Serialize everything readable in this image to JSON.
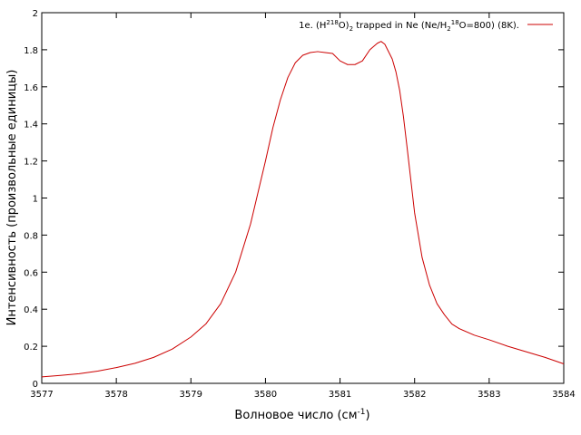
{
  "chart_data": {
    "type": "line",
    "xlabel": "Волновое число (см",
    "xlabel_sup": "-1",
    "xlabel_end": ")",
    "ylabel": "Интенсивность (произвольные единицы)",
    "xlim": [
      3577,
      3584
    ],
    "ylim": [
      0,
      2
    ],
    "x_ticks": [
      "3577",
      "3578",
      "3579",
      "3580",
      "3581",
      "3582",
      "3583",
      "3584"
    ],
    "y_ticks": [
      "0",
      "0.2",
      "0.4",
      "0.6",
      "0.8",
      "1",
      "1.2",
      "1.4",
      "1.6",
      "1.8",
      "2"
    ],
    "grid": false,
    "legend_position": "top-right",
    "series": [
      {
        "name_parts": {
          "a": "1e. (H",
          "s1": "2",
          "p1": "18",
          "b": "O)",
          "s2": "2",
          "c": " trapped in Ne (Ne/H",
          "s3": "2",
          "p2": "18",
          "d": "O=800) (8K)."
        },
        "color": "#cc0000",
        "points": [
          [
            3577.0,
            0.035
          ],
          [
            3577.25,
            0.043
          ],
          [
            3577.5,
            0.052
          ],
          [
            3577.75,
            0.066
          ],
          [
            3578.0,
            0.085
          ],
          [
            3578.25,
            0.108
          ],
          [
            3578.5,
            0.14
          ],
          [
            3578.75,
            0.185
          ],
          [
            3579.0,
            0.25
          ],
          [
            3579.2,
            0.32
          ],
          [
            3579.4,
            0.43
          ],
          [
            3579.6,
            0.6
          ],
          [
            3579.8,
            0.86
          ],
          [
            3579.9,
            1.03
          ],
          [
            3580.0,
            1.2
          ],
          [
            3580.1,
            1.38
          ],
          [
            3580.2,
            1.53
          ],
          [
            3580.3,
            1.65
          ],
          [
            3580.4,
            1.73
          ],
          [
            3580.5,
            1.77
          ],
          [
            3580.6,
            1.785
          ],
          [
            3580.7,
            1.79
          ],
          [
            3580.8,
            1.785
          ],
          [
            3580.9,
            1.78
          ],
          [
            3581.0,
            1.74
          ],
          [
            3581.1,
            1.72
          ],
          [
            3581.2,
            1.72
          ],
          [
            3581.3,
            1.74
          ],
          [
            3581.4,
            1.8
          ],
          [
            3581.5,
            1.835
          ],
          [
            3581.55,
            1.845
          ],
          [
            3581.6,
            1.83
          ],
          [
            3581.7,
            1.75
          ],
          [
            3581.75,
            1.68
          ],
          [
            3581.8,
            1.58
          ],
          [
            3581.85,
            1.44
          ],
          [
            3581.9,
            1.27
          ],
          [
            3582.0,
            0.92
          ],
          [
            3582.1,
            0.68
          ],
          [
            3582.2,
            0.53
          ],
          [
            3582.3,
            0.43
          ],
          [
            3582.4,
            0.37
          ],
          [
            3582.5,
            0.32
          ],
          [
            3582.6,
            0.295
          ],
          [
            3582.8,
            0.26
          ],
          [
            3583.0,
            0.235
          ],
          [
            3583.25,
            0.2
          ],
          [
            3583.5,
            0.17
          ],
          [
            3583.75,
            0.14
          ],
          [
            3584.0,
            0.105
          ]
        ]
      }
    ]
  }
}
